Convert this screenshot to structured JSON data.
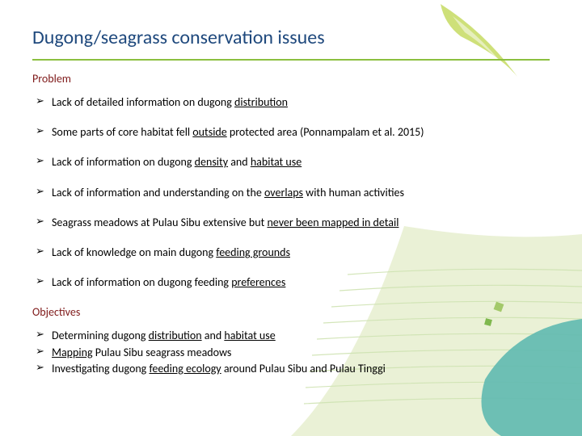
{
  "title": "Dugong/seagrass conservation issues",
  "title_color": "#1f497d",
  "rule_color": "#8bbf3f",
  "problem": {
    "heading": "Problem",
    "heading_color": "#7f1a1a",
    "items": [
      {
        "pre": "Lack of detailed information on dugong ",
        "u": "distribution",
        "post": ""
      },
      {
        "pre": "Some parts of core habitat fell ",
        "u": "outside",
        "post": " protected area (Ponnampalam et al. 2015)"
      },
      {
        "pre": "Lack of information on dugong ",
        "u": "density",
        "post": " and ",
        "u2": "habitat use",
        "post2": ""
      },
      {
        "pre": "Lack of information and understanding on the ",
        "u": "overlaps",
        "post": " with human activities"
      },
      {
        "pre": "Seagrass meadows at Pulau Sibu extensive but ",
        "u": "never been mapped in detail",
        "post": ""
      },
      {
        "pre": "Lack of knowledge on main dugong ",
        "u": "feeding grounds",
        "post": ""
      },
      {
        "pre": "Lack of information on dugong feeding ",
        "u": "preferences",
        "post": ""
      }
    ]
  },
  "objectives": {
    "heading": "Objectives",
    "heading_color": "#7f1a1a",
    "items": [
      {
        "pre": "Determining dugong ",
        "u": "distribution",
        "post": " and ",
        "u2": "habitat use",
        "post2": ""
      },
      {
        "pre": "",
        "u": "Mapping",
        "post": " Pulau Sibu seagrass meadows"
      },
      {
        "pre": "Investigating dugong ",
        "u": "feeding ecology",
        "post": " around Pulau Sibu and Pulau Tinggi"
      }
    ]
  },
  "deco": {
    "feather_fill": "#c9dd6b",
    "wave_line": "#cfe3b2",
    "wave_fill": "#e6efcf",
    "teal_fill": "#5fb9b0",
    "square1": "#a3c96a",
    "square2": "#7fb84e"
  }
}
